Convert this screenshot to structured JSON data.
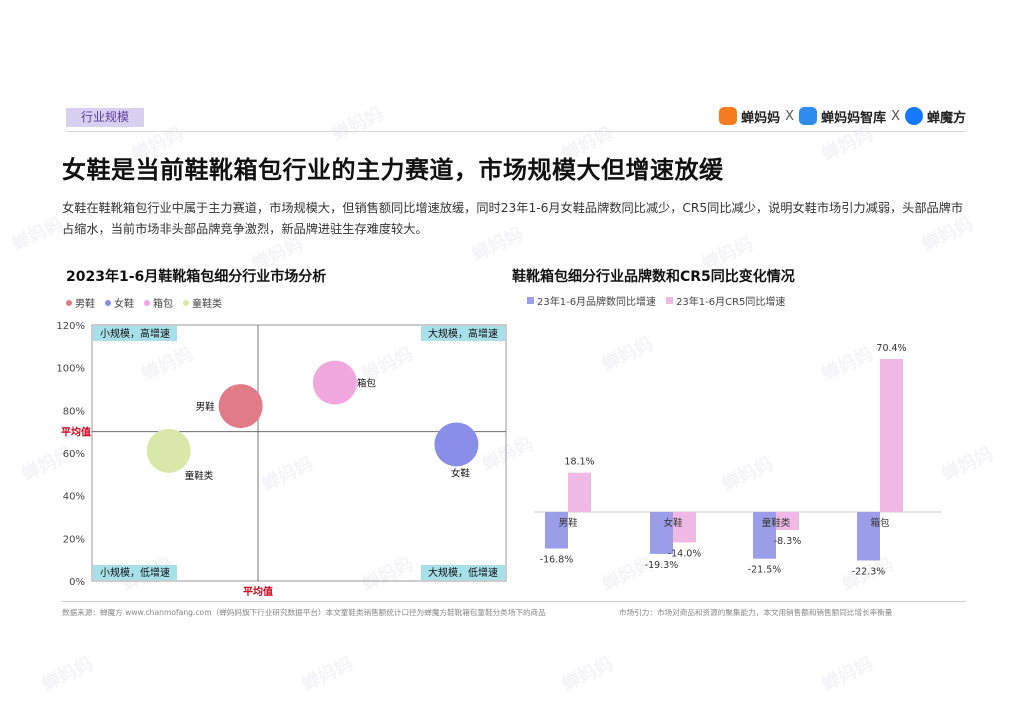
{
  "header": {
    "tag": "行业规模",
    "brand": {
      "logo1": "蝉妈妈",
      "sep1": "X",
      "logo2": "蝉妈妈智库",
      "sep2": "X",
      "logo3": "蝉魔方"
    }
  },
  "title": "女鞋是当前鞋靴箱包行业的主力赛道，市场规模大但增速放缓",
  "description": "女鞋在鞋靴箱包行业中属于主力赛道，市场规模大，但销售额同比增速放缓，同时23年1-6月女鞋品牌数同比减少，CR5同比减少，说明女鞋市场引力减弱，头部品牌市占缩水，当前市场非头部品牌竞争激烈，新品牌进驻生存难度较大。",
  "watermark": "蝉妈妈",
  "colors": {
    "accent": "#5b3fa3",
    "tag_bg": "#d9cff0",
    "quadrant_label_bg": "#a8e0ea",
    "avg_label": "#d0021b"
  },
  "chart_data": [
    {
      "type": "scatter",
      "title": "2023年1-6月鞋靴箱包细分行业市场分析",
      "y_ticks": [
        "120%",
        "100%",
        "80%",
        "60%",
        "40%",
        "20%",
        "0%"
      ],
      "ylim": [
        0,
        120
      ],
      "avg_y_label": "平均值",
      "avg_x_label": "平均值",
      "avg_y": 70,
      "quadrants": {
        "top_left": "小规模，高增速",
        "top_right": "大规模，高增速",
        "bottom_left": "小规模，低增速",
        "bottom_right": "大规模，低增速"
      },
      "points": [
        {
          "name": "男鞋",
          "x": -0.07,
          "y": 82,
          "color": "#e07b88"
        },
        {
          "name": "女鞋",
          "x": 0.8,
          "y": 64,
          "color": "#8a8ee8"
        },
        {
          "name": "箱包",
          "x": 0.31,
          "y": 93,
          "color": "#f0a8df"
        },
        {
          "name": "童鞋类",
          "x": -0.36,
          "y": 61,
          "color": "#d9e8a8"
        }
      ],
      "legend": [
        "男鞋",
        "女鞋",
        "箱包",
        "童鞋类"
      ]
    },
    {
      "type": "bar",
      "title": "鞋靴箱包细分行业品牌数和CR5同比变化情况",
      "categories": [
        "男鞋",
        "女鞋",
        "童鞋类",
        "箱包"
      ],
      "series": [
        {
          "name": "23年1-6月品牌数同比增速",
          "color": "#9b9de8",
          "values": [
            -16.8,
            -19.3,
            -21.5,
            -22.3
          ],
          "labels": [
            "-16.8%",
            "-19.3%",
            "-21.5%",
            "-22.3%"
          ]
        },
        {
          "name": "23年1-6月CR5同比增速",
          "color": "#f0b8e4",
          "values": [
            18.1,
            -14.0,
            -8.3,
            70.4
          ],
          "labels": [
            "18.1%",
            "-14.0%",
            "-8.3%",
            "70.4%"
          ]
        }
      ]
    }
  ],
  "footer": {
    "source": "数据来源：蝉魔方 www.chanmofang.com（蝉妈妈旗下行业研究数据平台）本文童鞋类销售额统计口径为蝉魔方鞋靴箱包童鞋分类场下的商品",
    "note": "市场引力：市场对商品和资源的聚集能力，本文用销售额和销售额同比增长率衡量"
  }
}
